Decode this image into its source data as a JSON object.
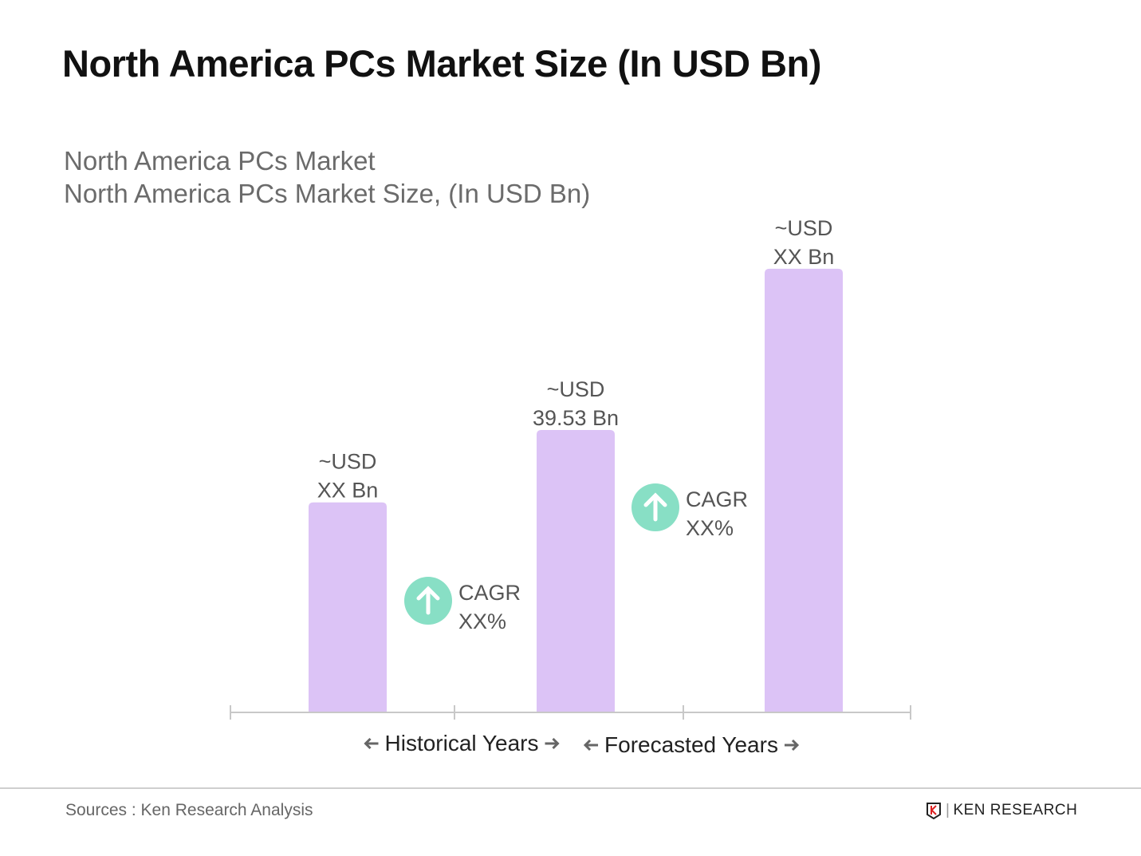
{
  "title": "North America PCs Market Size (In USD Bn)",
  "subtitle_1": "North America PCs Market",
  "subtitle_2": "North America PCs Market Size, (In USD Bn)",
  "chart_data": {
    "type": "bar",
    "categories": [
      "",
      "",
      ""
    ],
    "values": [
      29.4,
      39.53,
      62.1
    ],
    "bar_labels": [
      [
        "~USD",
        "XX Bn"
      ],
      [
        "~USD",
        "39.53 Bn"
      ],
      [
        "~USD",
        "XX Bn"
      ]
    ],
    "bar_color": "#dcc3f6",
    "cagr_annotations": [
      [
        "CAGR",
        "XX%"
      ],
      [
        "CAGR",
        "XX%"
      ]
    ],
    "cagr_icon": "arrow-up-circle-icon",
    "cagr_color": "#88dfc5",
    "axis_labels": [
      "Historical Years",
      "Forecasted Years"
    ],
    "ylim": [
      0,
      70
    ],
    "grid": false
  },
  "footer": {
    "source": "Sources : Ken Research Analysis",
    "logo_text": "KEN RESEARCH"
  }
}
